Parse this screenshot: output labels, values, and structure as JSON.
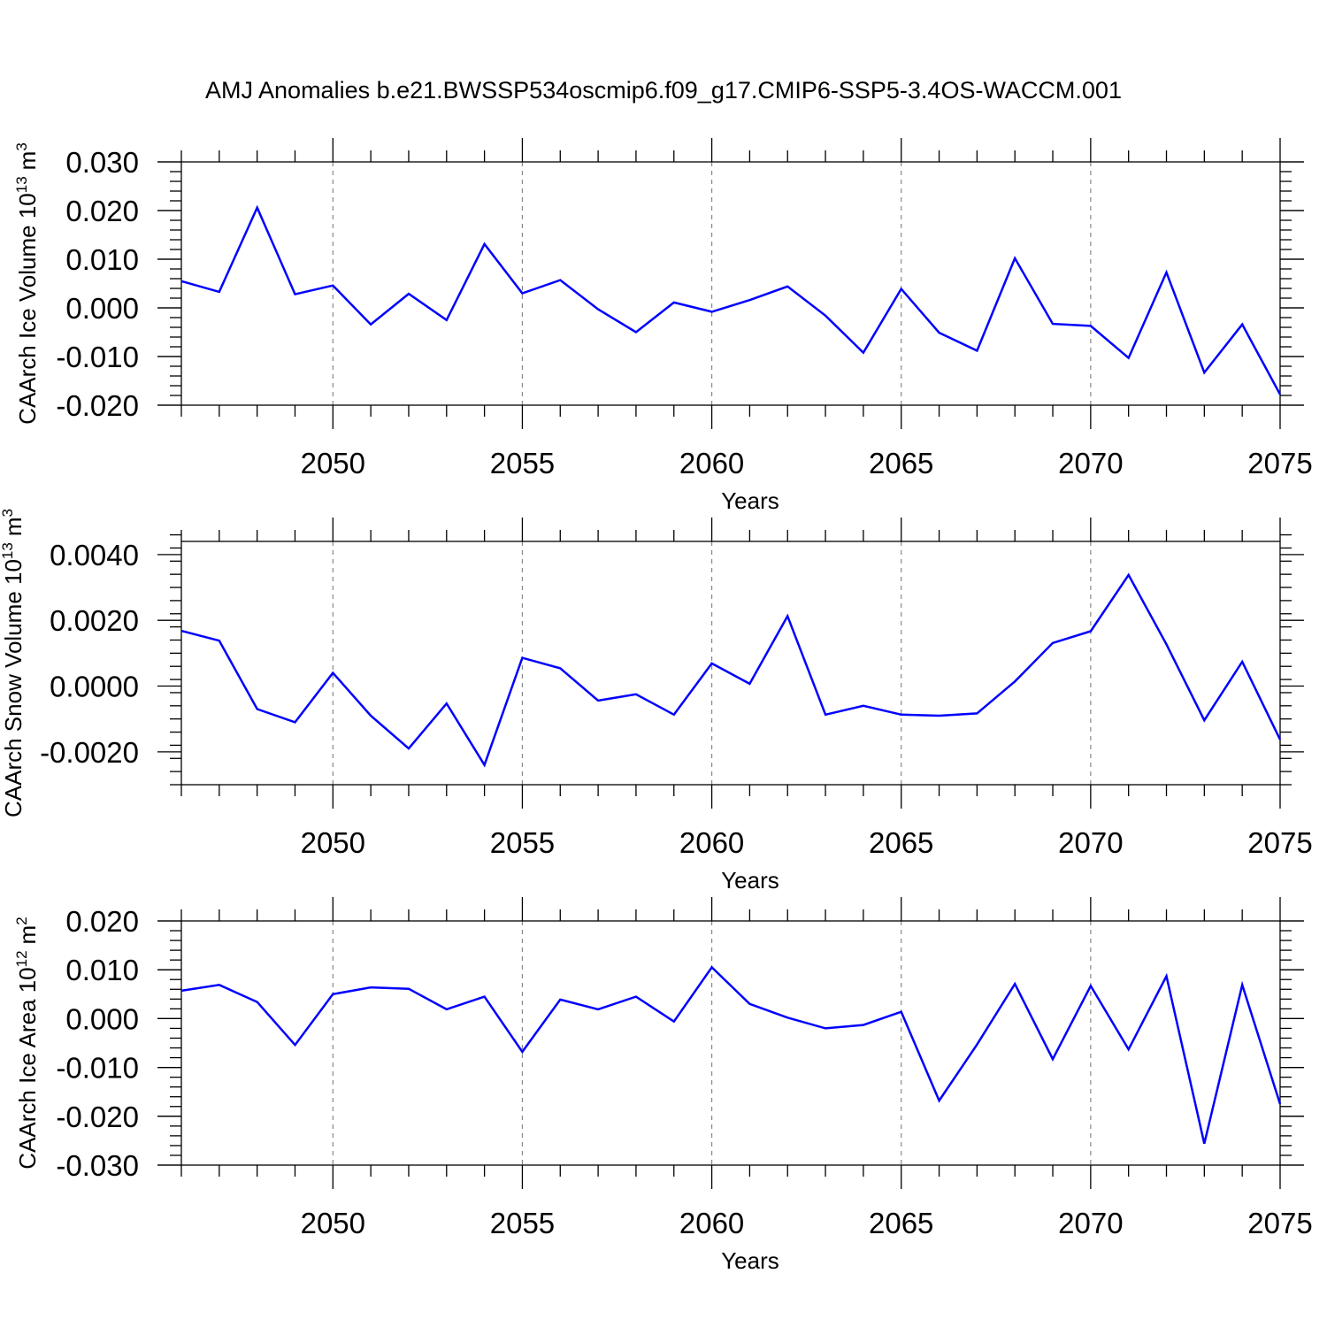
{
  "figure_title": "AMJ Anomalies b.e21.BWSSP534oscmip6.f09_g17.CMIP6-SSP5-3.4OS-WACCM.001",
  "colors": {
    "line": "#0000ff",
    "grid": "#888888",
    "axis": "#000000"
  },
  "chart_data": [
    {
      "type": "line",
      "title": "",
      "ylabel": {
        "text": "CAArch Ice Volume 10",
        "sup": "13",
        "unit": "m",
        "unit_sup": "3"
      },
      "xlabel": "Years",
      "xlim": [
        2046,
        2075
      ],
      "ylim": [
        -0.02,
        0.03
      ],
      "yticks": [
        -0.02,
        -0.01,
        0.0,
        0.01,
        0.02,
        0.03
      ],
      "ytick_labels": [
        "-0.020",
        "-0.010",
        "0.000",
        "0.010",
        "0.020",
        "0.030"
      ],
      "yminor_step": 0.002,
      "xticks": [
        2050,
        2055,
        2060,
        2065,
        2070,
        2075
      ],
      "xtick_labels": [
        "2050",
        "2055",
        "2060",
        "2065",
        "2070",
        "2075"
      ],
      "grid": "x-dashed",
      "x": [
        2046,
        2047,
        2048,
        2049,
        2050,
        2051,
        2052,
        2053,
        2054,
        2055,
        2056,
        2057,
        2058,
        2059,
        2060,
        2061,
        2062,
        2063,
        2064,
        2065,
        2066,
        2067,
        2068,
        2069,
        2070,
        2071,
        2072,
        2073,
        2074,
        2075
      ],
      "series": [
        {
          "values": [
            0.0055,
            0.0033,
            0.0206,
            0.0028,
            0.0046,
            -0.0034,
            0.0029,
            -0.0025,
            0.0131,
            0.003,
            0.0057,
            -0.0003,
            -0.005,
            0.0011,
            -0.0008,
            0.0016,
            0.0044,
            -0.0016,
            -0.0092,
            0.0039,
            -0.0051,
            -0.0088,
            0.0102,
            -0.0033,
            -0.0037,
            -0.0103,
            0.0073,
            -0.0133,
            -0.0034,
            -0.0178
          ]
        }
      ]
    },
    {
      "type": "line",
      "title": "",
      "ylabel": {
        "text": "CAArch Snow Volume 10",
        "sup": "13",
        "unit": "m",
        "unit_sup": "3"
      },
      "xlabel": "Years",
      "xlim": [
        2046,
        2075
      ],
      "ylim": [
        -0.003,
        0.0044
      ],
      "yticks": [
        -0.002,
        0.0,
        0.002,
        0.004
      ],
      "ytick_labels": [
        "-0.0020",
        "0.0000",
        "0.0020",
        "0.0040"
      ],
      "yminor_step": 0.0004,
      "xticks": [
        2050,
        2055,
        2060,
        2065,
        2070,
        2075
      ],
      "xtick_labels": [
        "2050",
        "2055",
        "2060",
        "2065",
        "2070",
        "2075"
      ],
      "grid": "x-dashed",
      "x": [
        2046,
        2047,
        2048,
        2049,
        2050,
        2051,
        2052,
        2053,
        2054,
        2055,
        2056,
        2057,
        2058,
        2059,
        2060,
        2061,
        2062,
        2063,
        2064,
        2065,
        2066,
        2067,
        2068,
        2069,
        2070,
        2071,
        2072,
        2073,
        2074,
        2075
      ],
      "series": [
        {
          "values": [
            0.00168,
            0.00138,
            -0.0007,
            -0.0011,
            0.0004,
            -0.0009,
            -0.0019,
            -0.00053,
            -0.0024,
            0.00086,
            0.00054,
            -0.00044,
            -0.00025,
            -0.00087,
            0.00069,
            7e-05,
            0.00213,
            -0.00087,
            -0.0006,
            -0.00087,
            -0.0009,
            -0.00083,
            0.00014,
            0.00131,
            0.00167,
            0.00338,
            0.00127,
            -0.00104,
            0.00074,
            -0.00163
          ]
        }
      ]
    },
    {
      "type": "line",
      "title": "",
      "ylabel": {
        "text": "CAArch Ice Area 10",
        "sup": "12",
        "unit": "m",
        "unit_sup": "2"
      },
      "xlabel": "Years",
      "xlim": [
        2046,
        2075
      ],
      "ylim": [
        -0.03,
        0.02
      ],
      "yticks": [
        -0.03,
        -0.02,
        -0.01,
        0.0,
        0.01,
        0.02
      ],
      "ytick_labels": [
        "-0.030",
        "-0.020",
        "-0.010",
        "0.000",
        "0.010",
        "0.020"
      ],
      "yminor_step": 0.002,
      "xticks": [
        2050,
        2055,
        2060,
        2065,
        2070,
        2075
      ],
      "xtick_labels": [
        "2050",
        "2055",
        "2060",
        "2065",
        "2070",
        "2075"
      ],
      "grid": "x-dashed",
      "x": [
        2046,
        2047,
        2048,
        2049,
        2050,
        2051,
        2052,
        2053,
        2054,
        2055,
        2056,
        2057,
        2058,
        2059,
        2060,
        2061,
        2062,
        2063,
        2064,
        2065,
        2066,
        2067,
        2068,
        2069,
        2070,
        2071,
        2072,
        2073,
        2074,
        2075
      ],
      "series": [
        {
          "values": [
            0.0057,
            0.0069,
            0.0034,
            -0.0054,
            0.005,
            0.0064,
            0.0061,
            0.0019,
            0.0045,
            -0.0068,
            0.0039,
            0.0019,
            0.0045,
            -0.0006,
            0.0105,
            0.003,
            0.0002,
            -0.002,
            -0.0013,
            0.0014,
            -0.0168,
            -0.0053,
            0.0071,
            -0.0083,
            0.0067,
            -0.0063,
            0.0087,
            -0.0256,
            0.0069,
            -0.0175
          ]
        }
      ]
    }
  ]
}
